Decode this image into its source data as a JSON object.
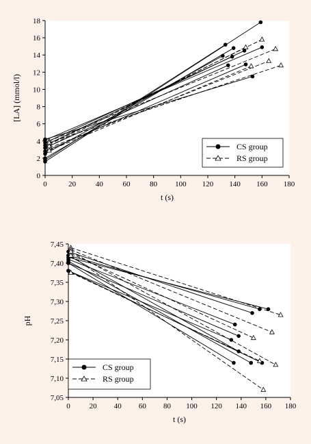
{
  "chart_data": [
    {
      "type": "line",
      "xlabel": "t (s)",
      "ylabel": "[LA] (mmol/l)",
      "xlim": [
        0,
        180
      ],
      "ylim": [
        0,
        18
      ],
      "xticks": [
        0,
        20,
        40,
        60,
        80,
        100,
        120,
        140,
        160,
        180
      ],
      "yticks": [
        0,
        2,
        4,
        6,
        8,
        10,
        12,
        14,
        16,
        18
      ],
      "legend": {
        "position": "bottom-right",
        "entries": [
          "CS group",
          "RS group"
        ]
      },
      "series": [
        {
          "name": "CS group",
          "marker": "filled-circle",
          "dash": "solid",
          "segments": [
            [
              [
                0,
                1.6
              ],
              [
                159,
                17.8
              ]
            ],
            [
              [
                0,
                1.8
              ],
              [
                133,
                15.2
              ]
            ],
            [
              [
                0,
                2.0
              ],
              [
                139,
                14.8
              ]
            ],
            [
              [
                0,
                2.5
              ],
              [
                131,
                13.9
              ]
            ],
            [
              [
                0,
                3.8
              ],
              [
                138,
                13.8
              ]
            ],
            [
              [
                0,
                4.1
              ],
              [
                160,
                14.9
              ]
            ],
            [
              [
                0,
                3.2
              ],
              [
                135,
                12.8
              ]
            ],
            [
              [
                0,
                4.2
              ],
              [
                153,
                11.5
              ]
            ],
            [
              [
                0,
                3.5
              ],
              [
                147,
                14.5
              ]
            ],
            [
              [
                0,
                2.8
              ],
              [
                148,
                12.9
              ]
            ]
          ]
        },
        {
          "name": "RS group",
          "marker": "open-triangle",
          "dash": "dashed",
          "segments": [
            [
              [
                3,
                3.6
              ],
              [
                160,
                15.8
              ]
            ],
            [
              [
                3,
                4.0
              ],
              [
                170,
                14.7
              ]
            ],
            [
              [
                3,
                3.2
              ],
              [
                165,
                13.3
              ]
            ],
            [
              [
                3,
                3.8
              ],
              [
                174,
                12.8
              ]
            ],
            [
              [
                3,
                2.9
              ],
              [
                152,
                12.7
              ]
            ],
            [
              [
                3,
                3.4
              ],
              [
                148,
                14.9
              ]
            ]
          ]
        }
      ]
    },
    {
      "type": "line",
      "xlabel": "t (s)",
      "ylabel": "pH",
      "xlim": [
        0,
        180
      ],
      "ylim": [
        7.05,
        7.45
      ],
      "xticks": [
        0,
        20,
        40,
        60,
        80,
        100,
        120,
        140,
        160,
        180
      ],
      "yticks": [
        "7,05",
        "7,10",
        "7,15",
        "7,20",
        "7,25",
        "7,30",
        "7,35",
        "7,40",
        "7,45"
      ],
      "legend": {
        "position": "bottom-left",
        "entries": [
          "CS group",
          "RS group"
        ]
      },
      "series": [
        {
          "name": "CS group",
          "marker": "filled-circle",
          "dash": "solid",
          "segments": [
            [
              [
                0,
                7.43
              ],
              [
                149,
                7.27
              ]
            ],
            [
              [
                0,
                7.42
              ],
              [
                155,
                7.28
              ]
            ],
            [
              [
                0,
                7.415
              ],
              [
                162,
                7.28
              ]
            ],
            [
              [
                0,
                7.41
              ],
              [
                135,
                7.24
              ]
            ],
            [
              [
                0,
                7.4
              ],
              [
                138,
                7.21
              ]
            ],
            [
              [
                0,
                7.38
              ],
              [
                132,
                7.2
              ]
            ],
            [
              [
                0,
                7.42
              ],
              [
                138,
                7.17
              ]
            ],
            [
              [
                0,
                7.405
              ],
              [
                148,
                7.14
              ]
            ],
            [
              [
                0,
                7.38
              ],
              [
                157,
                7.14
              ]
            ],
            [
              [
                0,
                7.4
              ],
              [
                134,
                7.14
              ]
            ]
          ]
        },
        {
          "name": "RS group",
          "marker": "open-triangle",
          "dash": "dashed",
          "segments": [
            [
              [
                2,
                7.44
              ],
              [
                172,
                7.265
              ]
            ],
            [
              [
                2,
                7.435
              ],
              [
                165,
                7.22
              ]
            ],
            [
              [
                2,
                7.425
              ],
              [
                150,
                7.205
              ]
            ],
            [
              [
                2,
                7.43
              ],
              [
                168,
                7.135
              ]
            ],
            [
              [
                2,
                7.375
              ],
              [
                155,
                7.145
              ]
            ],
            [
              [
                2,
                7.42
              ],
              [
                158,
                7.07
              ]
            ]
          ]
        }
      ]
    }
  ]
}
